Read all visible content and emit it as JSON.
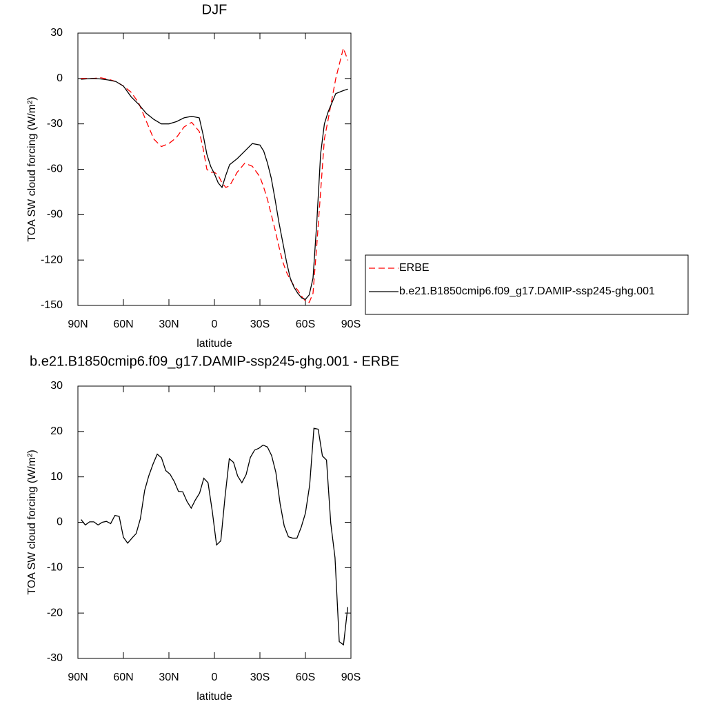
{
  "chart_data": [
    {
      "type": "line",
      "title": "DJF",
      "x_label": "latitude",
      "y_label": "TOA SW cloud forcing (W/m²)",
      "xlim": [
        90,
        -90
      ],
      "xticks": [
        {
          "value": 90,
          "label": "90N"
        },
        {
          "value": 60,
          "label": "60N"
        },
        {
          "value": 30,
          "label": "30N"
        },
        0,
        {
          "value": -30,
          "label": "30S"
        },
        {
          "value": -60,
          "label": "60S"
        },
        {
          "value": -90,
          "label": "90S"
        }
      ],
      "ylim": [
        -150,
        30
      ],
      "yticks": [
        30,
        0,
        -30,
        -60,
        -90,
        -120,
        -150
      ],
      "legend": "right",
      "x": [
        88,
        85,
        80,
        75,
        70,
        65,
        60,
        55,
        50,
        45,
        40,
        35,
        30,
        25,
        20,
        15,
        10,
        7.5,
        5,
        2.5,
        0,
        -2.5,
        -5,
        -7.5,
        -10,
        -15,
        -20,
        -25,
        -30,
        -32.5,
        -35,
        -37.5,
        -40,
        -42.5,
        -45,
        -47.5,
        -50,
        -52.5,
        -55,
        -57.5,
        -60,
        -62.5,
        -65,
        -67.5,
        -70,
        -72.5,
        -75,
        -80,
        -85,
        -88
      ],
      "series": [
        {
          "name": "ERBE",
          "color": "#ff0000",
          "line_style": "dashed",
          "values": [
            0,
            0,
            0,
            0.5,
            -0.5,
            -2,
            -5,
            -9,
            -16,
            -28,
            -40,
            -45,
            -43,
            -39,
            -32,
            -29,
            -35,
            -46,
            -60,
            -62,
            -62,
            -64,
            -69,
            -72,
            -71,
            -62,
            -56,
            -58,
            -65,
            -72,
            -80,
            -90,
            -100,
            -111,
            -121,
            -128,
            -133,
            -137,
            -140,
            -144,
            -147,
            -148,
            -142,
            -110,
            -75,
            -40,
            -27,
            0,
            20,
            12
          ]
        },
        {
          "name": "b.e21.B1850cmip6.f09_g17.DAMIP-ssp245-ghg.001",
          "color": "#000000",
          "line_style": "solid",
          "values": [
            -0.5,
            -0.3,
            0,
            -0.3,
            -1,
            -2,
            -5,
            -12,
            -17,
            -23,
            -27,
            -30,
            -30,
            -28.5,
            -26,
            -25,
            -26,
            -37,
            -50,
            -58,
            -63,
            -69,
            -72,
            -64,
            -57,
            -53,
            -48,
            -43,
            -44,
            -48,
            -56,
            -66,
            -80,
            -95,
            -108,
            -121,
            -132,
            -138,
            -142,
            -145,
            -146,
            -143,
            -132,
            -95,
            -50,
            -30,
            -22,
            -10,
            -8,
            -7
          ]
        }
      ]
    },
    {
      "type": "line",
      "title": "b.e21.B1850cmip6.f09_g17.DAMIP-ssp245-ghg.001 - ERBE",
      "x_label": "latitude",
      "y_label": "TOA SW cloud forcing (W/m²)",
      "xlim": [
        90,
        -90
      ],
      "xticks": [
        {
          "value": 90,
          "label": "90N"
        },
        {
          "value": 60,
          "label": "60N"
        },
        {
          "value": 30,
          "label": "30N"
        },
        0,
        {
          "value": -30,
          "label": "30S"
        },
        {
          "value": -60,
          "label": "60S"
        },
        {
          "value": -90,
          "label": "90S"
        }
      ],
      "ylim": [
        -30,
        30
      ],
      "yticks": [
        30,
        20,
        10,
        0,
        -10,
        -20,
        -30
      ],
      "color": "#000000",
      "line_style": "solid",
      "x": [
        87.9,
        85.1,
        82.3,
        79.5,
        76.7,
        73.9,
        71.2,
        68.4,
        65.6,
        62.8,
        60.0,
        57.2,
        54.4,
        51.6,
        48.8,
        46.0,
        43.3,
        40.5,
        37.7,
        34.9,
        32.1,
        29.3,
        26.5,
        23.7,
        20.9,
        18.1,
        15.3,
        12.6,
        9.8,
        7.0,
        4.2,
        1.4,
        -1.4,
        -4.2,
        -7.0,
        -9.8,
        -12.6,
        -15.3,
        -18.1,
        -20.9,
        -23.7,
        -26.5,
        -29.3,
        -32.1,
        -34.9,
        -37.7,
        -40.5,
        -43.3,
        -46.0,
        -48.8,
        -51.6,
        -54.4,
        -57.2,
        -60.0,
        -62.8,
        -65.6,
        -68.4,
        -71.2,
        -73.9,
        -76.7,
        -79.5,
        -82.3,
        -85.1,
        -87.9
      ],
      "values": [
        0.6,
        -0.6,
        0.1,
        0.1,
        -0.6,
        0,
        0.2,
        -0.3,
        1.5,
        1.3,
        -3.3,
        -4.6,
        -3.5,
        -2.5,
        0.8,
        7,
        10.2,
        12.8,
        15,
        14.2,
        11.4,
        10.6,
        9,
        6.8,
        6.7,
        4.6,
        3.1,
        4.9,
        6.4,
        9.7,
        8.7,
        2.4,
        -5,
        -4.1,
        5.6,
        14,
        13.2,
        10.2,
        8.7,
        10.5,
        14.3,
        15.9,
        16.3,
        17,
        16.6,
        14.7,
        11,
        4.1,
        -0.8,
        -3.2,
        -3.5,
        -3.5,
        -1.1,
        2,
        8.2,
        20.7,
        20.5,
        14.6,
        13.7,
        -0.2,
        -7.8,
        -26.3,
        -27,
        -18.7
      ]
    }
  ]
}
